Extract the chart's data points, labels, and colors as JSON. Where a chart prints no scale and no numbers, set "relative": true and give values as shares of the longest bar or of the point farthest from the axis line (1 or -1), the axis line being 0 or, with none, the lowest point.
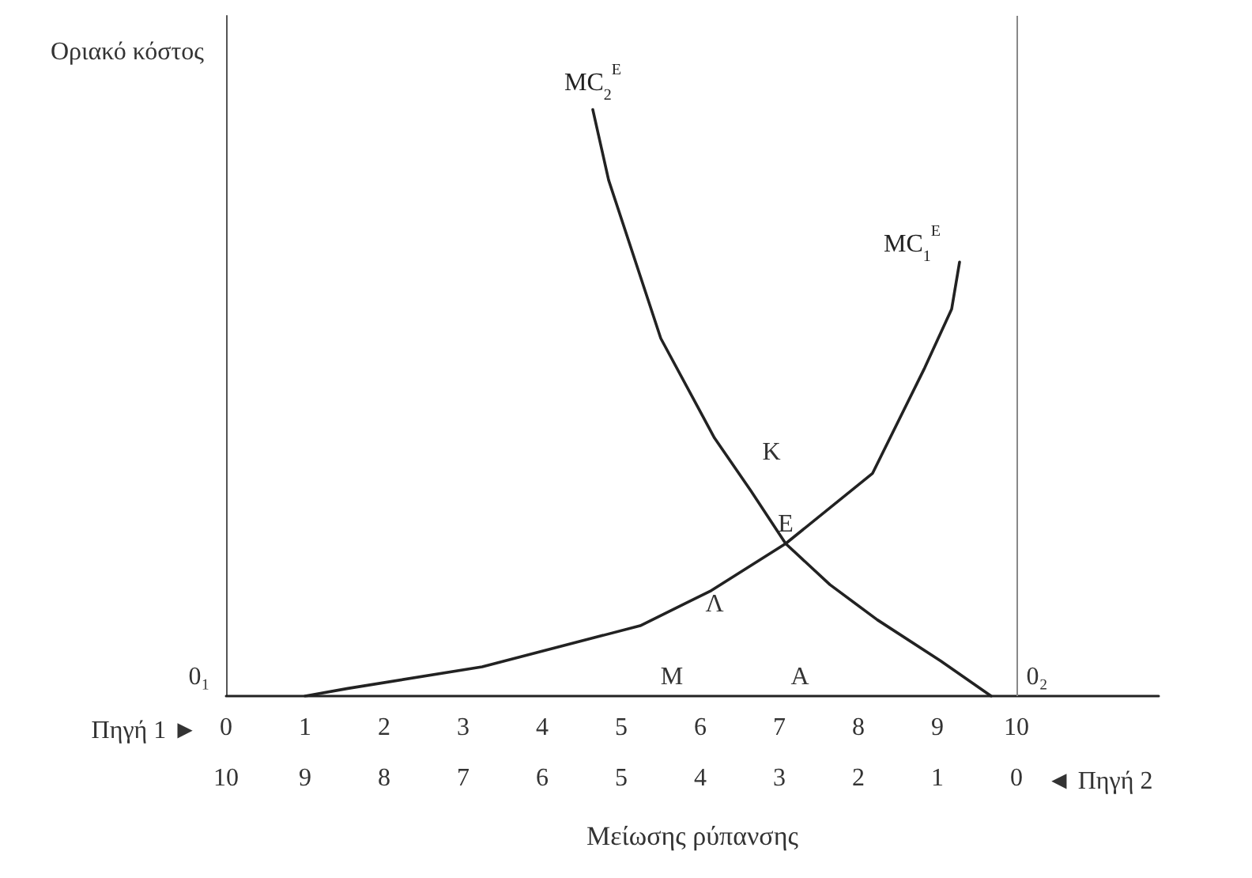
{
  "chart_data": {
    "type": "line",
    "relative": true,
    "xlabel": "Μείωσης ρύπανσης",
    "ylabel": "Οριακό κόστος",
    "xlim": [
      0,
      11.8
    ],
    "xticks": [
      0,
      1,
      2,
      3,
      4,
      5,
      6,
      7,
      8,
      9,
      10
    ],
    "x2lim": [
      10,
      -1.8
    ],
    "x2ticks": [
      10,
      9,
      8,
      7,
      6,
      5,
      4,
      3,
      2,
      1,
      0
    ],
    "series": [
      {
        "name": "MC$_{2}$$^{E}$",
        "color": "#222222",
        "x": [
          4.64,
          4.84,
          5.5,
          6.18,
          6.64,
          7.08,
          7.64,
          8.24,
          9.04,
          9.68
        ],
        "values": [
          1,
          0.88,
          0.61,
          0.44,
          0.35,
          0.26,
          0.19,
          0.13,
          0.06,
          0
        ]
      },
      {
        "name": "MC$_{1}$$^{E}$",
        "color": "#222222",
        "x": [
          1.0,
          1.54,
          3.24,
          5.24,
          6.14,
          7.08,
          8.18,
          8.84,
          9.18,
          9.28
        ],
        "values": [
          0,
          0.013,
          0.05,
          0.12,
          0.18,
          0.26,
          0.38,
          0.56,
          0.66,
          0.74
        ]
      }
    ],
    "ref_lines": [
      {
        "axis": "x",
        "value": 10,
        "color": "#888888"
      }
    ],
    "annotations": [
      "Πηγή 1 ►",
      "◄ Πηγή 2",
      "0₁",
      "0₂",
      "K",
      "Λ",
      "M",
      "A",
      {
        "text": "E",
        "x": 7.08,
        "y": 0.26
      }
    ],
    "grid": false,
    "legend": false,
    "marker": "none",
    "line_style": "solid"
  }
}
